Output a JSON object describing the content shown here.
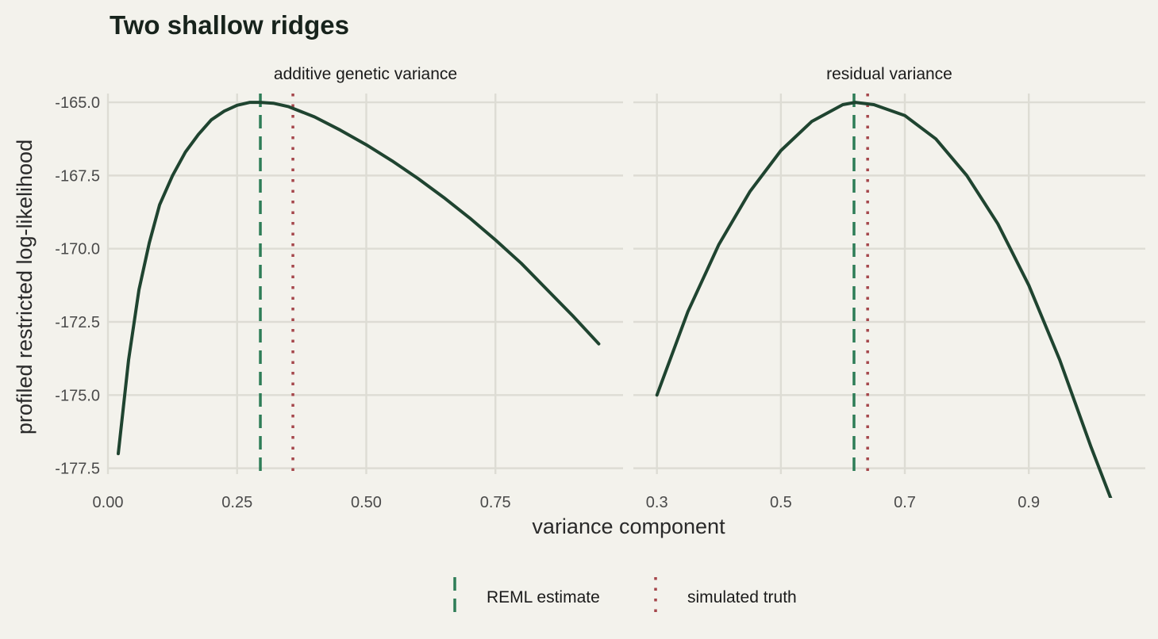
{
  "title": "Two shallow ridges",
  "xlabel": "variance component",
  "ylabel": "profiled restricted log-likelihood",
  "colors": {
    "background": "#f3f2ec",
    "curve": "#1f4430",
    "reml": "#2e7d57",
    "truth": "#a5464b",
    "grid": "#dddcd4"
  },
  "legend": {
    "placement": "bottom",
    "items": [
      {
        "label": "REML estimate",
        "style": "dashed",
        "color": "#2e7d57"
      },
      {
        "label": "simulated truth",
        "style": "dotted",
        "color": "#a5464b"
      }
    ]
  },
  "chart_data": {
    "type": "line",
    "shared_y": true,
    "ylim": [
      -177.7,
      -164.7
    ],
    "yticks": [
      -165,
      -167.5,
      -170,
      -172.5,
      -175,
      -177.5
    ],
    "ytick_labels": [
      "-165.0",
      "-167.5",
      "-170.0",
      "-172.5",
      "-175.0",
      "-177.5"
    ],
    "grid": true,
    "panels": [
      {
        "strip": "additive genetic variance",
        "xlim": [
          0,
          0.997
        ],
        "xticks": [
          0,
          0.25,
          0.5,
          0.75
        ],
        "xtick_labels": [
          "0.00",
          "0.25",
          "0.50",
          "0.75"
        ],
        "reml_estimate": 0.295,
        "simulated_truth": 0.358,
        "series": {
          "x": [
            0.02,
            0.03,
            0.04,
            0.06,
            0.08,
            0.1,
            0.125,
            0.15,
            0.175,
            0.2,
            0.225,
            0.25,
            0.275,
            0.295,
            0.32,
            0.35,
            0.4,
            0.45,
            0.5,
            0.55,
            0.6,
            0.65,
            0.7,
            0.75,
            0.8,
            0.85,
            0.9,
            0.95
          ],
          "y": [
            -177.0,
            -175.4,
            -173.8,
            -171.4,
            -169.8,
            -168.5,
            -167.5,
            -166.7,
            -166.1,
            -165.6,
            -165.3,
            -165.1,
            -165.0,
            -165.0,
            -165.03,
            -165.15,
            -165.5,
            -165.95,
            -166.45,
            -167.0,
            -167.6,
            -168.25,
            -168.95,
            -169.7,
            -170.5,
            -171.4,
            -172.3,
            -173.25
          ]
        }
      },
      {
        "strip": "residual variance",
        "xlim": [
          0.262,
          1.088
        ],
        "xticks": [
          0.3,
          0.5,
          0.7,
          0.9
        ],
        "xtick_labels": [
          "0.3",
          "0.5",
          "0.7",
          "0.9"
        ],
        "reml_estimate": 0.618,
        "simulated_truth": 0.64,
        "series": {
          "x": [
            0.3,
            0.35,
            0.4,
            0.45,
            0.5,
            0.55,
            0.6,
            0.62,
            0.65,
            0.7,
            0.75,
            0.8,
            0.85,
            0.9,
            0.95,
            1.0,
            1.05
          ],
          "y": [
            -175.0,
            -172.15,
            -169.85,
            -168.05,
            -166.65,
            -165.65,
            -165.08,
            -165.0,
            -165.08,
            -165.45,
            -166.25,
            -167.5,
            -169.15,
            -171.25,
            -173.8,
            -176.75,
            -179.5
          ]
        }
      }
    ]
  }
}
